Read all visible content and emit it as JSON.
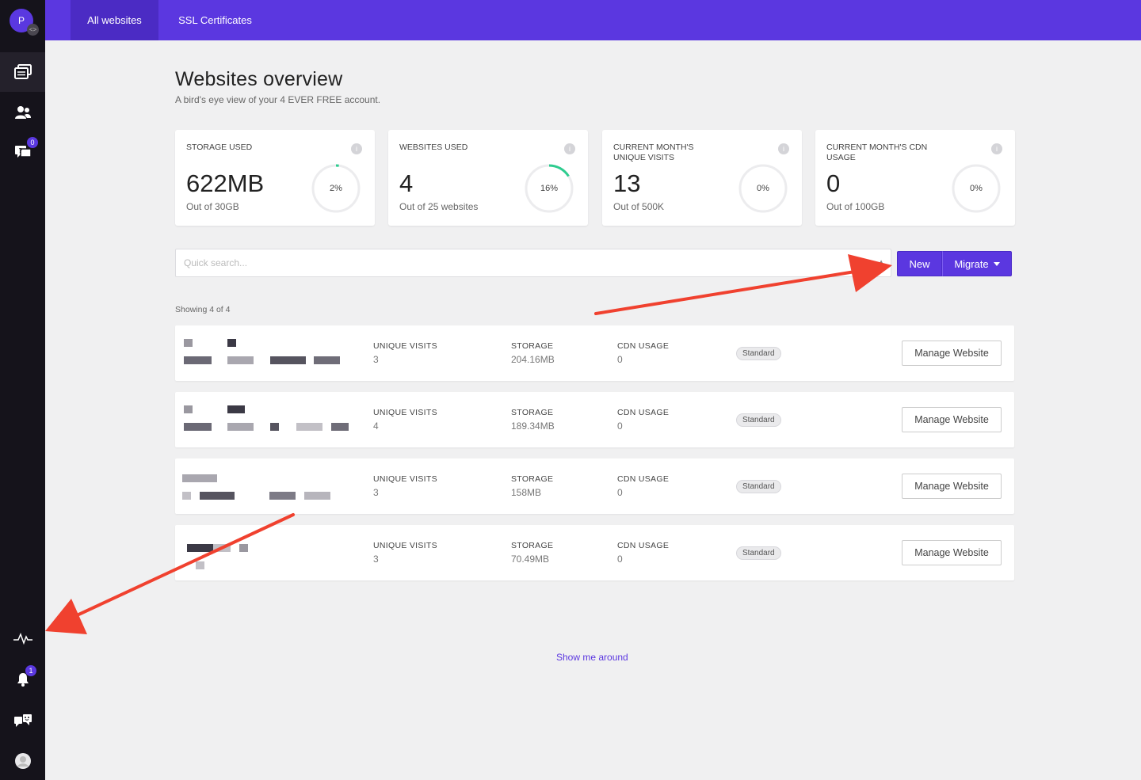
{
  "sidebar": {
    "avatar_letter": "P",
    "avatar_badge_icon": "code-icon",
    "nav": [
      {
        "id": "websites",
        "icon": "websites-icon",
        "active": true
      },
      {
        "id": "team",
        "icon": "users-icon",
        "active": false
      },
      {
        "id": "support",
        "icon": "tickets-icon",
        "badge": "0",
        "active": false
      }
    ],
    "bottom": [
      {
        "id": "activity",
        "icon": "activity-icon"
      },
      {
        "id": "notifications",
        "icon": "bell-icon",
        "badge": "1"
      },
      {
        "id": "chat",
        "icon": "chat-icon"
      },
      {
        "id": "profile",
        "icon": "user-avatar-icon"
      }
    ]
  },
  "topbar": {
    "tabs": [
      {
        "label": "All websites",
        "active": true
      },
      {
        "label": "SSL Certificates",
        "active": false
      }
    ]
  },
  "header": {
    "title": "Websites overview",
    "subtitle": "A bird's eye view of your 4 EVER FREE account."
  },
  "stats": [
    {
      "label": "Storage used",
      "value": "622MB",
      "sub": "Out of 30GB",
      "percent_label": "2%",
      "percent": 2
    },
    {
      "label": "Websites used",
      "value": "4",
      "sub": "Out of 25 websites",
      "percent_label": "16%",
      "percent": 16
    },
    {
      "label": "Current month's unique visits",
      "value": "13",
      "sub": "Out of 500K",
      "percent_label": "0%",
      "percent": 0
    },
    {
      "label": "Current month's CDN usage",
      "value": "0",
      "sub": "Out of 100GB",
      "percent_label": "0%",
      "percent": 0
    }
  ],
  "search": {
    "placeholder": "Quick search..."
  },
  "actions": {
    "new_label": "New",
    "migrate_label": "Migrate"
  },
  "showing": "Showing 4 of 4",
  "columns": {
    "visits": "Unique visits",
    "storage": "Storage",
    "cdn": "CDN usage"
  },
  "sites": [
    {
      "visits": "3",
      "storage": "204.16MB",
      "cdn": "0",
      "plan": "Standard",
      "manage_label": "Manage Website"
    },
    {
      "visits": "4",
      "storage": "189.34MB",
      "cdn": "0",
      "plan": "Standard",
      "manage_label": "Manage Website"
    },
    {
      "visits": "3",
      "storage": "158MB",
      "cdn": "0",
      "plan": "Standard",
      "manage_label": "Manage Website"
    },
    {
      "visits": "3",
      "storage": "70.49MB",
      "cdn": "0",
      "plan": "Standard",
      "manage_label": "Manage Website"
    }
  ],
  "footer_link": "Show me around",
  "colors": {
    "primary": "#5b37e0",
    "sidebar_bg": "#15131b",
    "ring_progress": "#2ecc8f",
    "annotation_arrow": "#f0412f"
  }
}
